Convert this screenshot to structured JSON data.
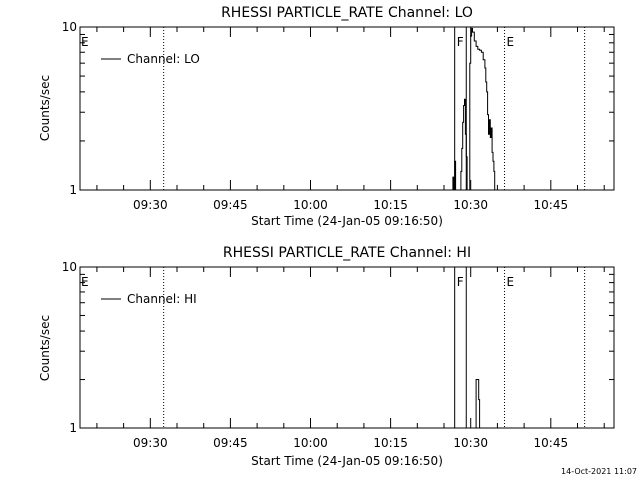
{
  "chart_data": [
    {
      "type": "line",
      "title": "RHESSI PARTICLE_RATE Channel: LO",
      "xlabel": "Start Time (24-Jan-05 09:16:50)",
      "ylabel": "Counts/sec",
      "yscale": "log",
      "ylim": [
        1,
        10
      ],
      "xlim": [
        "09:16:50",
        "10:56:50"
      ],
      "xticks": [
        "09:30",
        "09:45",
        "10:00",
        "10:15",
        "10:30",
        "10:45"
      ],
      "yticks": [
        "1",
        "10"
      ],
      "legend": {
        "position": "top-left",
        "entries": [
          "Channel: LO"
        ]
      },
      "markers": [
        {
          "label": "E",
          "time": "09:16:50"
        },
        {
          "label": "",
          "time": "09:32:30"
        },
        {
          "label": "F",
          "time": "10:27:00"
        },
        {
          "label": "",
          "time": "10:29:10"
        },
        {
          "label": "E",
          "time": "10:36:20"
        },
        {
          "label": "",
          "time": "10:51:20"
        }
      ],
      "series": [
        {
          "name": "Channel: LO",
          "points": [
            [
              "10:26:30",
              1
            ],
            [
              "10:26:40",
              1.2
            ],
            [
              "10:26:50",
              1
            ],
            [
              "10:27:00",
              1.5
            ],
            [
              "10:27:10",
              1
            ],
            [
              "10:28:00",
              1
            ],
            [
              "10:28:10",
              1.3
            ],
            [
              "10:28:20",
              1.8
            ],
            [
              "10:28:30",
              2.6
            ],
            [
              "10:28:40",
              3.3
            ],
            [
              "10:28:50",
              3.6
            ],
            [
              "10:29:00",
              2.2
            ],
            [
              "10:29:10",
              1.6
            ],
            [
              "10:29:20",
              1
            ],
            [
              "10:29:40",
              1
            ],
            [
              "10:29:50",
              6
            ],
            [
              "10:30:00",
              8.8
            ],
            [
              "10:30:10",
              9.8
            ],
            [
              "10:30:20",
              9.3
            ],
            [
              "10:30:40",
              8.2
            ],
            [
              "10:31:00",
              7.6
            ],
            [
              "10:31:20",
              7.3
            ],
            [
              "10:31:40",
              7.2
            ],
            [
              "10:32:00",
              7.0
            ],
            [
              "10:32:20",
              6.3
            ],
            [
              "10:32:40",
              5.6
            ],
            [
              "10:32:50",
              4.6
            ],
            [
              "10:33:00",
              4.0
            ],
            [
              "10:33:10",
              2.9
            ],
            [
              "10:33:20",
              2.2
            ],
            [
              "10:33:30",
              2.7
            ],
            [
              "10:33:40",
              2.1
            ],
            [
              "10:33:50",
              2.4
            ],
            [
              "10:34:00",
              1.7
            ],
            [
              "10:34:10",
              1.5
            ],
            [
              "10:34:20",
              1.3
            ],
            [
              "10:34:30",
              1
            ]
          ]
        }
      ]
    },
    {
      "type": "line",
      "title": "RHESSI PARTICLE_RATE Channel: HI",
      "xlabel": "Start Time (24-Jan-05 09:16:50)",
      "ylabel": "Counts/sec",
      "yscale": "log",
      "ylim": [
        1,
        10
      ],
      "xlim": [
        "09:16:50",
        "10:56:50"
      ],
      "xticks": [
        "09:30",
        "09:45",
        "10:00",
        "10:15",
        "10:30",
        "10:45"
      ],
      "yticks": [
        "1",
        "10"
      ],
      "legend": {
        "position": "top-left",
        "entries": [
          "Channel: HI"
        ]
      },
      "markers": [
        {
          "label": "E",
          "time": "09:16:50"
        },
        {
          "label": "",
          "time": "09:32:30"
        },
        {
          "label": "F",
          "time": "10:27:00"
        },
        {
          "label": "",
          "time": "10:29:10"
        },
        {
          "label": "E",
          "time": "10:36:20"
        },
        {
          "label": "",
          "time": "10:51:20"
        }
      ],
      "series": [
        {
          "name": "Channel: HI",
          "points": [
            [
              "10:31:00",
              1
            ],
            [
              "10:31:00",
              2
            ],
            [
              "10:31:20",
              2
            ],
            [
              "10:31:30",
              1.5
            ],
            [
              "10:31:40",
              1
            ]
          ]
        }
      ]
    }
  ],
  "footer": {
    "timestamp": "14-Oct-2021 11:07"
  }
}
